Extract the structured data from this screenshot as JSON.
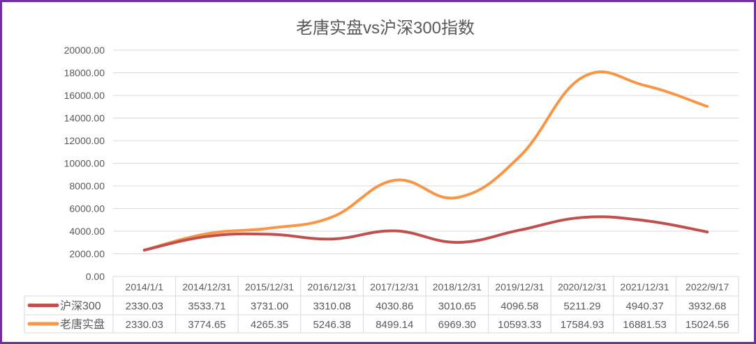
{
  "chart_data": {
    "type": "line",
    "title": "老唐实盘vs沪深300指数",
    "xlabel": "",
    "ylabel": "",
    "ylim": [
      0,
      20000
    ],
    "yticks": [
      "0.00",
      "2000.00",
      "4000.00",
      "6000.00",
      "8000.00",
      "10000.00",
      "12000.00",
      "14000.00",
      "16000.00",
      "18000.00",
      "20000.00"
    ],
    "grid": true,
    "legend": "data-table",
    "categories": [
      "2014/1/1",
      "2014/12/31",
      "2015/12/31",
      "2016/12/31",
      "2017/12/31",
      "2018/12/31",
      "2019/12/31",
      "2020/12/31",
      "2021/12/31",
      "2022/9/17"
    ],
    "series": [
      {
        "name": "沪深300",
        "color": "#c0504d",
        "values": [
          2330.03,
          3533.71,
          3731.0,
          3310.08,
          4030.86,
          3010.65,
          4096.58,
          5211.29,
          4940.37,
          3932.68
        ],
        "labels": [
          "2330.03",
          "3533.71",
          "3731.00",
          "3310.08",
          "4030.86",
          "3010.65",
          "4096.58",
          "5211.29",
          "4940.37",
          "3932.68"
        ]
      },
      {
        "name": "老唐实盘",
        "color": "#f79646",
        "values": [
          2330.03,
          3774.65,
          4265.35,
          5246.38,
          8499.14,
          6969.3,
          10593.33,
          17584.93,
          16881.53,
          15024.56
        ],
        "labels": [
          "2330.03",
          "3774.65",
          "4265.35",
          "5246.38",
          "8499.14",
          "6969.30",
          "10593.33",
          "17584.93",
          "16881.53",
          "15024.56"
        ]
      }
    ]
  }
}
